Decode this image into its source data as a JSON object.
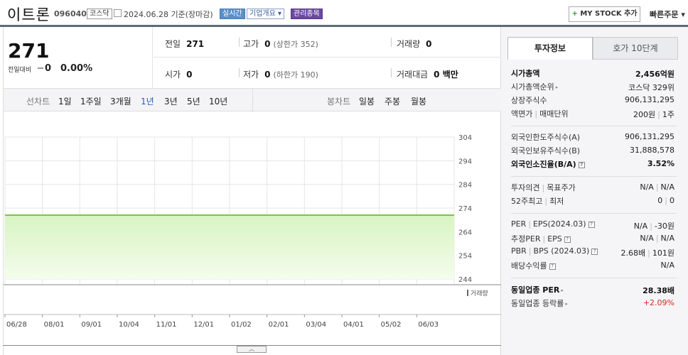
{
  "header": {
    "name": "이트론",
    "code": "096040",
    "market": "코스닥",
    "date": "2024.06.28 기준(장마감)",
    "realtime_label": "실시간",
    "company_info_label": "기업개요",
    "management_label": "관리종목",
    "mystock_label": "MY STOCK 추가",
    "quick_order_label": "빠른주문"
  },
  "price": {
    "current": "271",
    "change_label": "전일대비",
    "change_value": "0",
    "change_pct": "0.00%"
  },
  "stats": {
    "prev_label": "전일",
    "prev": "271",
    "high_label": "고가",
    "high": "0",
    "upper_limit": "(상한가 352)",
    "volume_label": "거래량",
    "volume": "0",
    "open_label": "시가",
    "open": "0",
    "low_label": "저가",
    "low": "0",
    "lower_limit": "(하한가 190)",
    "amount_label": "거래대금",
    "amount": "0 백만"
  },
  "chart_tabs": {
    "line_label": "선차트",
    "line_periods": [
      "1일",
      "1주일",
      "3개월",
      "1년",
      "3년",
      "5년",
      "10년"
    ],
    "active_period": "1년",
    "candle_label": "봉차트",
    "candle_periods": [
      "일봉",
      "주봉",
      "월봉"
    ]
  },
  "chart_data": {
    "type": "area",
    "x": [
      "06/28",
      "08/01",
      "09/01",
      "10/04",
      "11/01",
      "12/01",
      "01/02",
      "02/01",
      "03/04",
      "04/01",
      "05/02",
      "06/03"
    ],
    "series": [
      {
        "values": [
          271,
          271,
          271,
          271,
          271,
          271,
          271,
          271,
          271,
          271,
          271,
          271
        ]
      }
    ],
    "yticks": [
      304,
      294,
      284,
      274,
      264,
      254,
      244
    ],
    "ylim": [
      244,
      304
    ],
    "volume_label": "거래량",
    "grid": true,
    "line_color": "#7cc34a",
    "fill_color": "#d8f4c2"
  },
  "right": {
    "tab_invest": "투자정보",
    "tab_quote": "호가 10단계",
    "rows": {
      "market_cap_label": "시가총액",
      "market_cap": "2,456억원",
      "rank_label": "시가총액순위",
      "rank": "코스닥 329위",
      "shares_label": "상장주식수",
      "shares": "906,131,295",
      "face_label": "액면가",
      "unit_label": "매매단위",
      "face": "200원",
      "unit": "1주",
      "foreign_limit_label": "외국인한도주식수(A)",
      "foreign_limit": "906,131,295",
      "foreign_hold_label": "외국인보유주식수(B)",
      "foreign_hold": "31,888,578",
      "foreign_ratio_label": "외국인소진율(B/A)",
      "foreign_ratio": "3.52%",
      "opinion_label": "투자의견",
      "target_label": "목표주가",
      "opinion": "N/A",
      "target": "N/A",
      "w52_high_label": "52주최고",
      "w52_low_label": "최저",
      "w52_high": "0",
      "w52_low": "0",
      "per_label": "PER",
      "eps_label": "EPS(2024.03)",
      "per": "N/A",
      "eps": "-30원",
      "est_per_label": "추정PER",
      "est_eps_label": "EPS",
      "est_per": "N/A",
      "est_eps": "N/A",
      "pbr_label": "PBR",
      "bps_label": "BPS (2024.03)",
      "pbr": "2.68배",
      "bps": "101원",
      "div_label": "배당수익률",
      "div": "N/A",
      "ind_per_label": "동일업종 PER",
      "ind_per": "28.38배",
      "ind_rate_label": "동일업종 등락률",
      "ind_rate": "+2.09%"
    }
  }
}
